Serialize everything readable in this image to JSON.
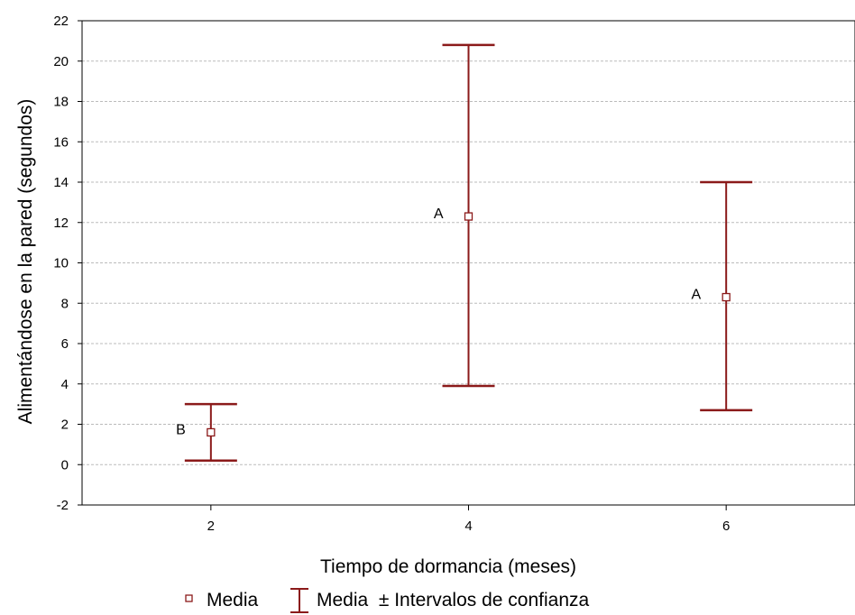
{
  "chart_data": {
    "type": "scatter",
    "xlabel": "Tiempo de dormancia (meses)",
    "ylabel": "Alimentándose en la pared (segundos)",
    "xlim": [
      1,
      7
    ],
    "ylim": [
      -2,
      22
    ],
    "x_ticks": [
      2,
      4,
      6
    ],
    "y_ticks": [
      -2,
      0,
      2,
      4,
      6,
      8,
      10,
      12,
      14,
      16,
      18,
      20,
      22
    ],
    "grid": "horizontal dashed",
    "series": [
      {
        "name": "Media",
        "points": [
          {
            "x": 2,
            "mean": 1.6,
            "lower": 0.2,
            "upper": 3.0,
            "group": "B"
          },
          {
            "x": 4,
            "mean": 12.3,
            "lower": 3.9,
            "upper": 20.8,
            "group": "A"
          },
          {
            "x": 6,
            "mean": 8.3,
            "lower": 2.7,
            "upper": 14.0,
            "group": "A"
          }
        ]
      }
    ],
    "colors": {
      "errorbar": "#8b1a1a",
      "marker_border": "#8b1a1a",
      "marker_fill": "#ffffff",
      "grid": "#bbbbbb"
    },
    "legend": {
      "placement": "bottom",
      "entries": [
        {
          "icon": "square-marker",
          "label": "Media"
        },
        {
          "icon": "errorbar",
          "label": "Media  ± Intervalos de confianza"
        }
      ]
    }
  }
}
